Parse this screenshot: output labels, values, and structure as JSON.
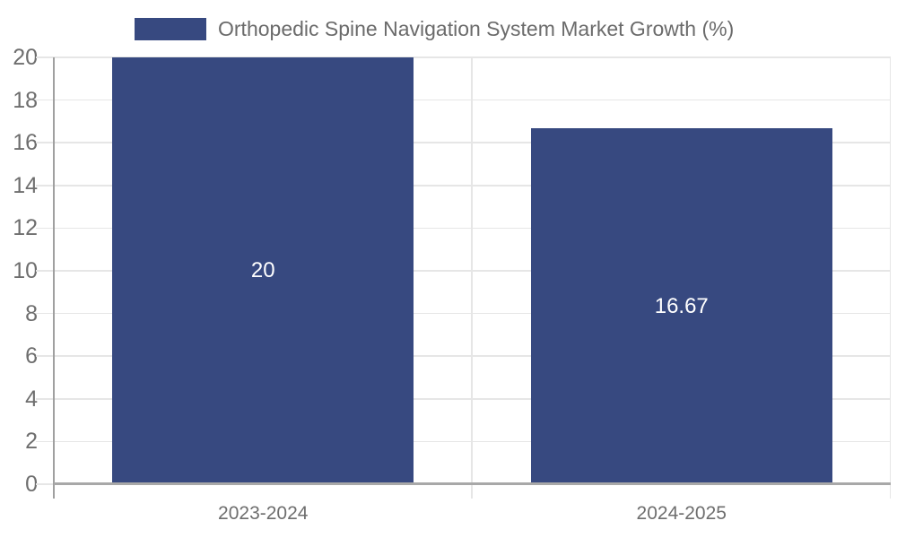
{
  "legend": {
    "label": "Orthopedic Spine Navigation System Market Growth (%)",
    "swatch_color": "#374980"
  },
  "chart_data": {
    "type": "bar",
    "title": "Orthopedic Spine Navigation System Market Growth (%)",
    "categories": [
      "2023-2024",
      "2024-2025"
    ],
    "values": [
      20,
      16.67
    ],
    "value_labels": [
      "20",
      "16.67"
    ],
    "xlabel": "",
    "ylabel": "",
    "ylim": [
      0,
      20
    ],
    "ytick_step": 2,
    "ytick_labels": [
      "0",
      "2",
      "4",
      "6",
      "8",
      "10",
      "12",
      "14",
      "16",
      "18",
      "20"
    ],
    "grid": true,
    "legend_position": "top-left",
    "bar_color": "#374980",
    "value_label_color": "#ffffff"
  },
  "colors": {
    "background": "#ffffff",
    "grid": "#e6e6e6",
    "axis": "#a0a0a0",
    "tick_text": "#6e6e6e",
    "legend_text": "#6b6b6b"
  }
}
